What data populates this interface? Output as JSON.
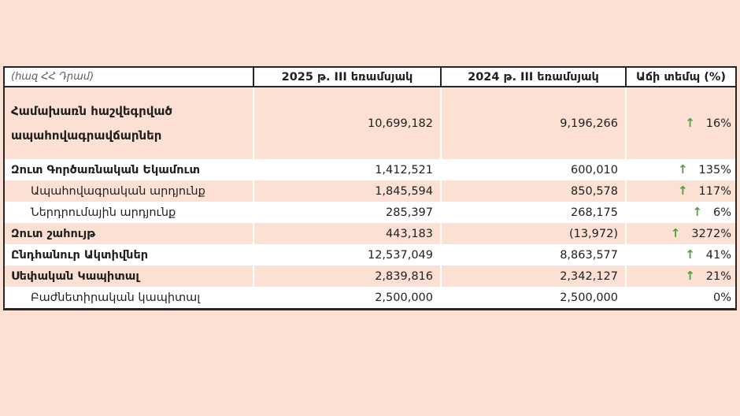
{
  "chart_data": {
    "type": "table",
    "title": "",
    "unit_note": "(հազ ՀՀ Դրամ)",
    "columns": [
      "",
      "2025 թ. III եռամսյակ",
      "2024 թ. III եռամսյակ",
      "Աճի տեմպ (%)"
    ],
    "rows": [
      {
        "label": "Համախառն հաշվեգրված ապահովագրավճարներ",
        "q3_2025": 10699182,
        "q3_2024": 9196266,
        "growth_pct": 16,
        "trend": "up"
      },
      {
        "label": "Զուտ Գործառնական Եկամուտ",
        "q3_2025": 1412521,
        "q3_2024": 600010,
        "growth_pct": 135,
        "trend": "up"
      },
      {
        "label": "Ապահովագրական արդյունք",
        "q3_2025": 1845594,
        "q3_2024": 850578,
        "growth_pct": 117,
        "trend": "up"
      },
      {
        "label": "Ներդրումային արդյունք",
        "q3_2025": 285397,
        "q3_2024": 268175,
        "growth_pct": 6,
        "trend": "up"
      },
      {
        "label": "Զուտ շահույթ",
        "q3_2025": 443183,
        "q3_2024": -13972,
        "growth_pct": 3272,
        "trend": "up"
      },
      {
        "label": "Ընդհանուր Ակտիվներ",
        "q3_2025": 12537049,
        "q3_2024": 8863577,
        "growth_pct": 41,
        "trend": "up"
      },
      {
        "label": "Սեփական Կապիտալ",
        "q3_2025": 2839816,
        "q3_2024": 2342127,
        "growth_pct": 21,
        "trend": "up"
      },
      {
        "label": "Բաժնետիրական կապիտալ",
        "q3_2025": 2500000,
        "q3_2024": 2500000,
        "growth_pct": 0,
        "trend": "flat"
      }
    ],
    "colors": {
      "row_highlight": "#fbe0d3",
      "arrow_green": "#4e9f3d",
      "border": "#262626"
    }
  },
  "table": {
    "header": {
      "unit_label": "(հազ ՀՀ Դրամ)",
      "col_2025": "2025 թ. III եռամսյակ",
      "col_2024": "2024 թ. III եռամսյակ",
      "col_growth": "Աճի տեմպ (%)"
    },
    "rows": [
      {
        "label": "Համախառն հաշվեգրված ապահովագրավճարներ",
        "v2025": "10,699,182",
        "v2024": "9,196,266",
        "arrow": "↑",
        "growth": "16%"
      },
      {
        "label": "Զուտ Գործառնական Եկամուտ",
        "v2025": "1,412,521",
        "v2024": "600,010",
        "arrow": "↑",
        "growth": "135%"
      },
      {
        "label": "Ապահովագրական արդյունք",
        "v2025": "1,845,594",
        "v2024": "850,578",
        "arrow": "↑",
        "growth": "117%"
      },
      {
        "label": "Ներդրումային արդյունք",
        "v2025": "285,397",
        "v2024": "268,175",
        "arrow": "↑",
        "growth": "6%"
      },
      {
        "label": "Զուտ շահույթ",
        "v2025": "443,183",
        "v2024": "(13,972)",
        "arrow": "↑",
        "growth": "3272%"
      },
      {
        "label": "Ընդհանուր Ակտիվներ",
        "v2025": "12,537,049",
        "v2024": "8,863,577",
        "arrow": "↑",
        "growth": "41%"
      },
      {
        "label": "Սեփական Կապիտալ",
        "v2025": "2,839,816",
        "v2024": "2,342,127",
        "arrow": "↑",
        "growth": "21%"
      },
      {
        "label": "Բաժնետիրական կապիտալ",
        "v2025": "2,500,000",
        "v2024": "2,500,000",
        "arrow": "",
        "growth": "0%"
      }
    ]
  }
}
